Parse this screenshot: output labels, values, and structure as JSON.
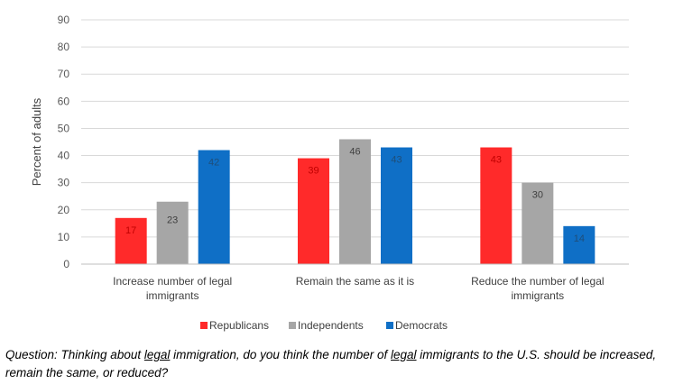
{
  "chart_data": {
    "type": "bar",
    "title": "",
    "ylabel": "Percent of adults",
    "xlabel": "",
    "ylim": [
      0,
      90
    ],
    "yticks": [
      0,
      10,
      20,
      30,
      40,
      50,
      60,
      70,
      80,
      90
    ],
    "grid": true,
    "legend_position": "bottom",
    "categories": [
      [
        "Increase number of legal",
        "immigrants"
      ],
      [
        "Remain the same as it is"
      ],
      [
        "Reduce the number of legal",
        "immigrants"
      ]
    ],
    "series": [
      {
        "name": "Republicans",
        "color": "#FF2A2A",
        "values": [
          17,
          39,
          43
        ]
      },
      {
        "name": "Independents",
        "color": "#A6A6A6",
        "values": [
          23,
          46,
          30
        ]
      },
      {
        "name": "Democrats",
        "color": "#0F6FC6",
        "values": [
          42,
          43,
          14
        ]
      }
    ]
  },
  "caption": {
    "parts": [
      {
        "text": "Question: Thinking about ",
        "u": false
      },
      {
        "text": "legal",
        "u": true
      },
      {
        "text": " immigration, do you think the number of ",
        "u": false
      },
      {
        "text": "legal",
        "u": true
      },
      {
        "text": " immigrants to the U.S. should be increased, remain the same, or reduced?",
        "u": false
      }
    ]
  }
}
